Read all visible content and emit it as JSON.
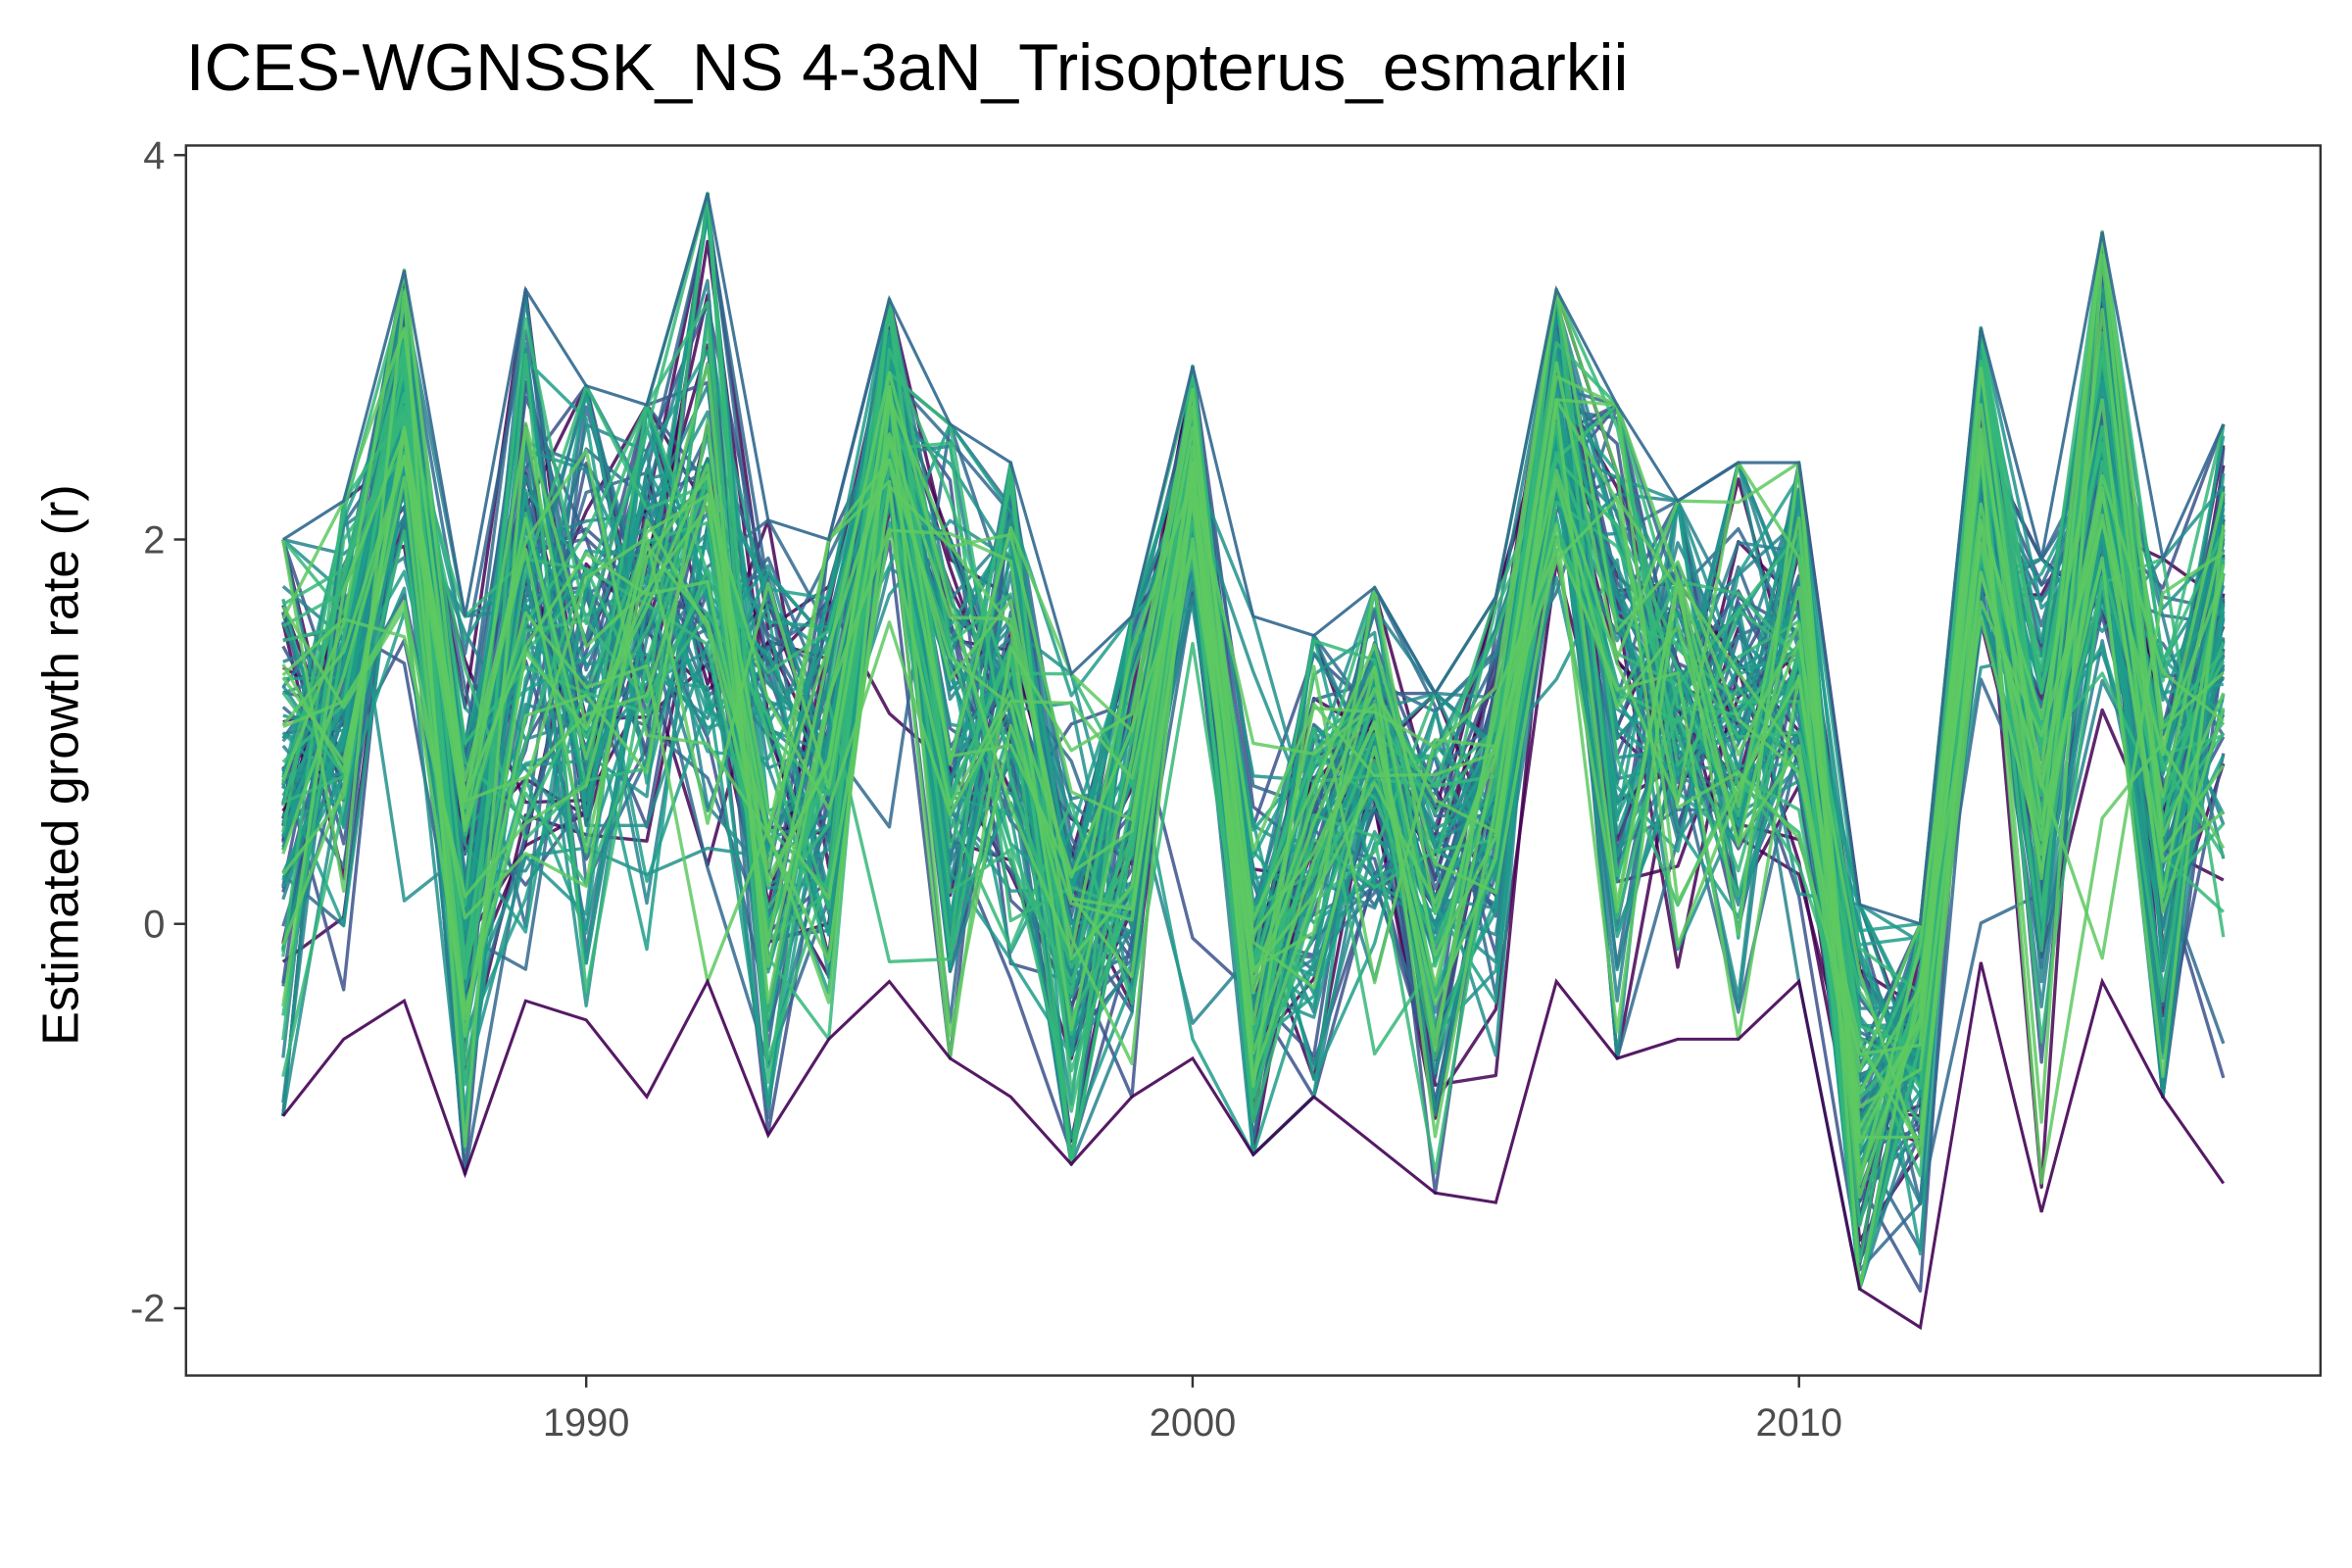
{
  "chart_data": {
    "type": "line",
    "title": "ICES-WGNSSK_NS 4-3aN_Trisopterus_esmarkii",
    "xlabel": "",
    "ylabel": "Estimated growth rate (r)",
    "xlim": [
      1983.4,
      2018.6
    ],
    "ylim": [
      -2.35,
      4.05
    ],
    "x_ticks": [
      "1990",
      "2000",
      "2010"
    ],
    "x_tick_values": [
      1990,
      2000,
      2010
    ],
    "y_ticks": [
      "-2",
      "0",
      "2",
      "4"
    ],
    "y_tick_values": [
      -2,
      0,
      2,
      4
    ],
    "grid": false,
    "legend": "none",
    "x": [
      1985,
      1986,
      1987,
      1988,
      1989,
      1990,
      1991,
      1992,
      1993,
      1994,
      1995,
      1996,
      1997,
      1998,
      1999,
      2000,
      2001,
      2002,
      2003,
      2004,
      2005,
      2006,
      2007,
      2008,
      2009,
      2010,
      2011,
      2012,
      2013,
      2014,
      2015,
      2016,
      2017
    ],
    "central_trajectory": [
      0.7,
      1.2,
      2.5,
      0.1,
      1.6,
      1.3,
      1.7,
      1.9,
      0.6,
      0.9,
      2.6,
      1.0,
      1.2,
      -0.1,
      0.6,
      2.4,
      -0.3,
      0.4,
      1.0,
      0.1,
      0.8,
      2.7,
      1.0,
      1.3,
      1.0,
      1.4,
      -0.9,
      -0.5,
      2.3,
      0.8,
      2.5,
      0.6,
      1.6
    ],
    "series_envelope": {
      "min": [
        -1.0,
        -0.6,
        -0.4,
        -1.3,
        -0.4,
        -0.5,
        -0.9,
        -0.3,
        -1.1,
        -0.6,
        -0.3,
        -0.7,
        -0.9,
        -1.25,
        -0.9,
        -0.7,
        -1.2,
        -0.9,
        -1.15,
        -1.4,
        -1.45,
        -0.3,
        -0.7,
        -0.6,
        -0.6,
        -0.3,
        -1.9,
        -2.1,
        -0.2,
        -1.5,
        -0.3,
        -0.9,
        -1.35
      ],
      "max": [
        2.0,
        2.2,
        3.4,
        1.6,
        3.3,
        2.8,
        2.7,
        3.8,
        2.1,
        2.0,
        3.25,
        2.6,
        2.4,
        1.3,
        1.6,
        2.9,
        1.6,
        1.5,
        1.75,
        1.2,
        1.7,
        3.3,
        2.7,
        2.2,
        2.4,
        2.4,
        0.1,
        0.0,
        3.1,
        1.9,
        3.6,
        1.9,
        2.6
      ]
    },
    "series_count": 110,
    "colors": [
      "#440154",
      "#3b528b",
      "#31688e",
      "#26828e",
      "#21918c",
      "#1f9e89",
      "#35b779",
      "#5ec962"
    ],
    "axis_color": "#333333",
    "tick_label_color": "#4d4d4d",
    "background": "#ffffff"
  }
}
